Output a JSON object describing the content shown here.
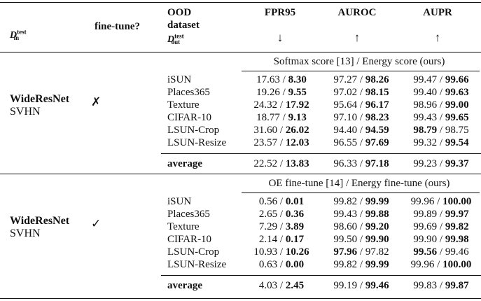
{
  "header": {
    "din_symbol": "D",
    "din_sup": "test",
    "din_sub": "in",
    "finetune": "fine-tune?",
    "ood_line1": "OOD",
    "ood_line2": "dataset",
    "dout_symbol": "D",
    "dout_sup": "test",
    "dout_sub": "out",
    "col_fpr": "FPR95",
    "col_auroc": "AUROC",
    "col_aupr": "AUPR",
    "arrow_fpr": "↓",
    "arrow_auroc": "↑",
    "arrow_aupr": "↑"
  },
  "blocks": [
    {
      "caption": "Softmax score [13] / Energy score (ours)",
      "model": "WideResNet",
      "in_dataset": "SVHN",
      "finetune_mark": "✗",
      "rows": [
        {
          "name": "iSUN",
          "fpr_a": "17.63",
          "fpr_b": "8.30",
          "auroc_a": "97.27",
          "auroc_b": "98.26",
          "aupr_a": "99.47",
          "aupr_b": "99.66",
          "bold": [
            "fpr_b",
            "auroc_b",
            "aupr_b"
          ]
        },
        {
          "name": "Places365",
          "fpr_a": "19.26",
          "fpr_b": "9.55",
          "auroc_a": "97.02",
          "auroc_b": "98.15",
          "aupr_a": "99.40",
          "aupr_b": "99.63",
          "bold": [
            "fpr_b",
            "auroc_b",
            "aupr_b"
          ]
        },
        {
          "name": "Texture",
          "fpr_a": "24.32",
          "fpr_b": "17.92",
          "auroc_a": "95.64",
          "auroc_b": "96.17",
          "aupr_a": "98.96",
          "aupr_b": "99.00",
          "bold": [
            "fpr_b",
            "auroc_b",
            "aupr_b"
          ]
        },
        {
          "name": "CIFAR-10",
          "fpr_a": "18.77",
          "fpr_b": "9.13",
          "auroc_a": "97.10",
          "auroc_b": "98.23",
          "aupr_a": "99.43",
          "aupr_b": "99.65",
          "bold": [
            "fpr_b",
            "auroc_b",
            "aupr_b"
          ]
        },
        {
          "name": "LSUN-Crop",
          "fpr_a": "31.60",
          "fpr_b": "26.02",
          "auroc_a": "94.40",
          "auroc_b": "94.59",
          "aupr_a": "98.79",
          "aupr_b": "98.75",
          "bold": [
            "fpr_b",
            "auroc_b",
            "aupr_a"
          ]
        },
        {
          "name": "LSUN-Resize",
          "fpr_a": "23.57",
          "fpr_b": "12.03",
          "auroc_a": "96.55",
          "auroc_b": "97.69",
          "aupr_a": "99.32",
          "aupr_b": "99.54",
          "bold": [
            "fpr_b",
            "auroc_b",
            "aupr_b"
          ]
        }
      ],
      "average": {
        "name": "average",
        "fpr_a": "22.52",
        "fpr_b": "13.83",
        "auroc_a": "96.33",
        "auroc_b": "97.18",
        "aupr_a": "99.23",
        "aupr_b": "99.37",
        "bold": [
          "fpr_b",
          "auroc_b",
          "aupr_b"
        ]
      }
    },
    {
      "caption": "OE fine-tune [14] / Energy fine-tune (ours)",
      "model": "WideResNet",
      "in_dataset": "SVHN",
      "finetune_mark": "✓",
      "rows": [
        {
          "name": "iSUN",
          "fpr_a": "0.56",
          "fpr_b": "0.01",
          "auroc_a": "99.82",
          "auroc_b": "99.99",
          "aupr_a": "99.96",
          "aupr_b": "100.00",
          "bold": [
            "fpr_b",
            "auroc_b",
            "aupr_b"
          ]
        },
        {
          "name": "Places365",
          "fpr_a": "2.65",
          "fpr_b": "0.36",
          "auroc_a": "99.43",
          "auroc_b": "99.88",
          "aupr_a": "99.89",
          "aupr_b": "99.97",
          "bold": [
            "fpr_b",
            "auroc_b",
            "aupr_b"
          ]
        },
        {
          "name": "Texture",
          "fpr_a": "7.29",
          "fpr_b": "3.89",
          "auroc_a": "98.60",
          "auroc_b": "99.20",
          "aupr_a": "99.69",
          "aupr_b": "99.82",
          "bold": [
            "fpr_b",
            "auroc_b",
            "aupr_b"
          ]
        },
        {
          "name": "CIFAR-10",
          "fpr_a": "2.14",
          "fpr_b": "0.17",
          "auroc_a": "99.50",
          "auroc_b": "99.90",
          "aupr_a": "99.90",
          "aupr_b": "99.98",
          "bold": [
            "fpr_b",
            "auroc_b",
            "aupr_b"
          ]
        },
        {
          "name": "LSUN-Crop",
          "fpr_a": "10.93",
          "fpr_b": "10.26",
          "auroc_a": "97.96",
          "auroc_b": "97.82",
          "aupr_a": "99.56",
          "aupr_b": "99.46",
          "bold": [
            "fpr_b",
            "auroc_a",
            "aupr_a"
          ]
        },
        {
          "name": "LSUN-Resize",
          "fpr_a": "0.63",
          "fpr_b": "0.00",
          "auroc_a": "99.82",
          "auroc_b": "99.99",
          "aupr_a": "99.96",
          "aupr_b": "100.00",
          "bold": [
            "fpr_b",
            "auroc_b",
            "aupr_b"
          ]
        }
      ],
      "average": {
        "name": "average",
        "fpr_a": "4.03",
        "fpr_b": "2.45",
        "auroc_a": "99.19",
        "auroc_b": "99.46",
        "aupr_a": "99.83",
        "aupr_b": "99.87",
        "bold": [
          "fpr_b",
          "auroc_b",
          "aupr_b"
        ]
      }
    }
  ]
}
